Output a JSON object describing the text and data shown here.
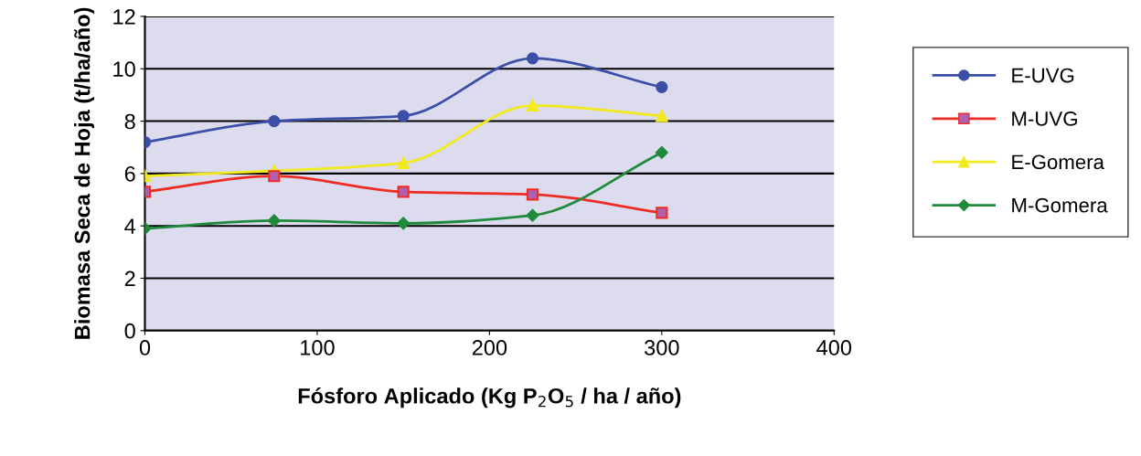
{
  "chart_data": {
    "type": "line",
    "xlabel": "Fósforo Aplicado (Kg P$_{2}$O$_{5}$ / ha / año)",
    "ylabel": "Biomasa Seca de Hoja (t/ha/año)",
    "x": [
      0,
      75,
      150,
      225,
      300
    ],
    "series": [
      {
        "name": "E-UVG",
        "color": "#3b4fa8",
        "marker": "circle",
        "values": [
          7.2,
          8.0,
          8.2,
          10.4,
          9.3
        ]
      },
      {
        "name": "M-UVG",
        "color": "#ee2c24",
        "marker": "square",
        "values": [
          5.3,
          5.9,
          5.3,
          5.2,
          4.5
        ]
      },
      {
        "name": "E-Gomera",
        "color": "#f2ea1c",
        "marker": "triangle",
        "values": [
          5.9,
          6.1,
          6.4,
          8.6,
          8.2
        ]
      },
      {
        "name": "M-Gomera",
        "color": "#1f8a3c",
        "marker": "diamond",
        "values": [
          3.9,
          4.2,
          4.1,
          4.4,
          6.8
        ]
      }
    ],
    "xlim": [
      0,
      400
    ],
    "xticks": [
      0,
      100,
      200,
      300,
      400
    ],
    "ylim": [
      0,
      12
    ],
    "yticks": [
      0,
      2,
      4,
      6,
      8,
      10,
      12
    ],
    "grid": "y",
    "legend": "right",
    "line_style": "solid"
  }
}
